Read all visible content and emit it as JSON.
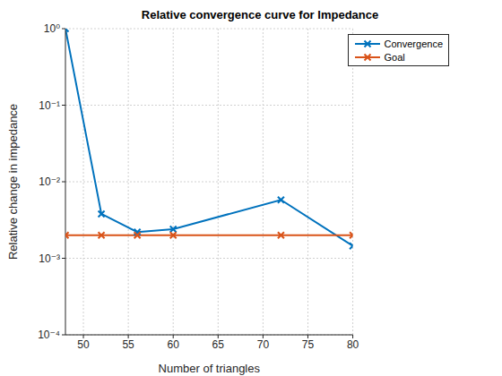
{
  "chart_data": {
    "type": "line",
    "title": "Relative convergence curve for Impedance",
    "x_label": "Number of triangles",
    "y_label": "Relative change in impedance",
    "x": [
      48,
      52,
      56,
      60,
      72,
      80
    ],
    "series": [
      {
        "name": "Convergence",
        "color": "#0072bd",
        "marker": "x",
        "values": [
          1,
          0.0038,
          0.0022,
          0.0024,
          0.0058,
          0.00145
        ]
      },
      {
        "name": "Goal",
        "color": "#d95319",
        "marker": "x",
        "values": [
          0.002,
          0.002,
          0.002,
          0.002,
          0.002,
          0.002
        ]
      }
    ],
    "xlim": [
      48,
      80
    ],
    "xticks": [
      50,
      55,
      60,
      65,
      70,
      75,
      80
    ],
    "ylim": [
      0.0001,
      1
    ],
    "yticks": [
      {
        "value": 0.0001,
        "label": "10⁻⁴"
      },
      {
        "value": 0.001,
        "label": "10⁻³"
      },
      {
        "value": 0.01,
        "label": "10⁻²"
      },
      {
        "value": 0.1,
        "label": "10⁻¹"
      },
      {
        "value": 1,
        "label": "10⁰"
      }
    ],
    "log": "y",
    "grid": true,
    "legend": "northeast"
  }
}
